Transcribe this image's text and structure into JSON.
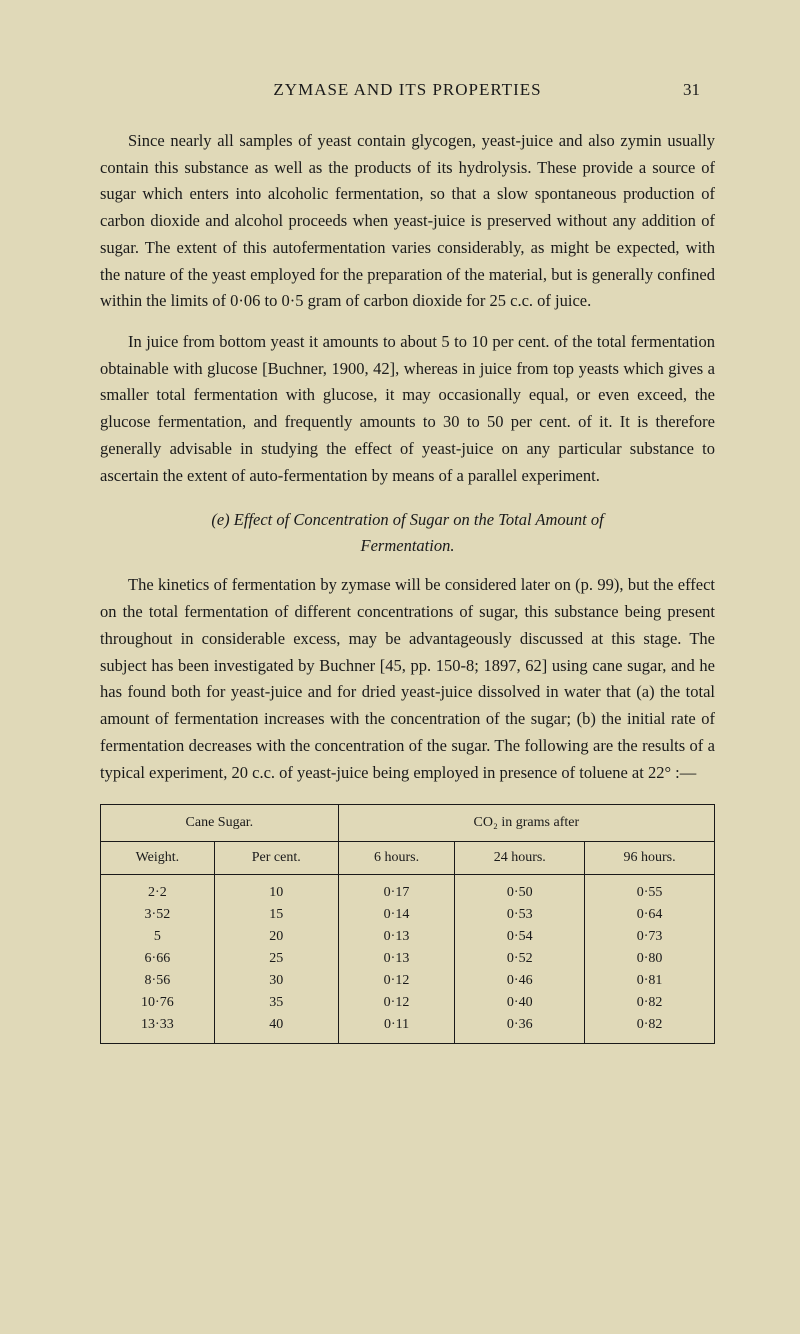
{
  "header": {
    "title": "ZYMASE AND ITS PROPERTIES",
    "page_number": "31"
  },
  "paragraphs": {
    "p1": "Since nearly all samples of yeast contain glycogen, yeast-juice and also zymin usually contain this substance as well as the products of its hydrolysis. These provide a source of sugar which enters into alcoholic fermentation, so that a slow spontaneous production of carbon dioxide and alcohol proceeds when yeast-juice is preserved without any addition of sugar. The extent of this autofermentation varies considerably, as might be expected, with the nature of the yeast employed for the preparation of the material, but is generally confined within the limits of 0·06 to 0·5 gram of carbon dioxide for 25 c.c. of juice.",
    "p2": "In juice from bottom yeast it amounts to about 5 to 10 per cent. of the total fermentation obtainable with glucose [Buchner, 1900, 42], whereas in juice from top yeasts which gives a smaller total fermentation with glucose, it may occasionally equal, or even exceed, the glucose fermentation, and frequently amounts to 30 to 50 per cent. of it. It is therefore generally advisable in studying the effect of yeast-juice on any particular substance to ascertain the extent of auto-fermentation by means of a parallel experiment.",
    "section_title_line1": "(e) Effect of Concentration of Sugar on the Total Amount of",
    "section_title_line2": "Fermentation.",
    "p3": "The kinetics of fermentation by zymase will be considered later on (p. 99), but the effect on the total fermentation of different concentrations of sugar, this substance being present throughout in considerable excess, may be advantageously discussed at this stage. The subject has been investigated by Buchner [45, pp. 150-8; 1897, 62] using cane sugar, and he has found both for yeast-juice and for dried yeast-juice dissolved in water that (a) the total amount of fermentation increases with the concentration of the sugar; (b) the initial rate of fermentation decreases with the concentration of the sugar. The following are the results of a typical experiment, 20 c.c. of yeast-juice being employed in presence of toluene at 22° :—"
  },
  "table": {
    "main_headers": {
      "cane_sugar": "Cane Sugar.",
      "co2": "CO₂ in grams after"
    },
    "sub_headers": {
      "weight": "Weight.",
      "percent": "Per cent.",
      "h6": "6 hours.",
      "h24": "24 hours.",
      "h96": "96 hours."
    },
    "rows": [
      {
        "weight": "2·2",
        "percent": "10",
        "h6": "0·17",
        "h24": "0·50",
        "h96": "0·55"
      },
      {
        "weight": "3·52",
        "percent": "15",
        "h6": "0·14",
        "h24": "0·53",
        "h96": "0·64"
      },
      {
        "weight": "5",
        "percent": "20",
        "h6": "0·13",
        "h24": "0·54",
        "h96": "0·73"
      },
      {
        "weight": "6·66",
        "percent": "25",
        "h6": "0·13",
        "h24": "0·52",
        "h96": "0·80"
      },
      {
        "weight": "8·56",
        "percent": "30",
        "h6": "0·12",
        "h24": "0·46",
        "h96": "0·81"
      },
      {
        "weight": "10·76",
        "percent": "35",
        "h6": "0·12",
        "h24": "0·40",
        "h96": "0·82"
      },
      {
        "weight": "13·33",
        "percent": "40",
        "h6": "0·11",
        "h24": "0·36",
        "h96": "0·82"
      }
    ]
  },
  "styling": {
    "background_color": "#e0d9b8",
    "text_color": "#1a1a1a",
    "body_font_size": 16.5,
    "table_font_size": 14,
    "header_font_size": 17,
    "line_height": 1.62,
    "border_color": "#1a1a1a"
  }
}
